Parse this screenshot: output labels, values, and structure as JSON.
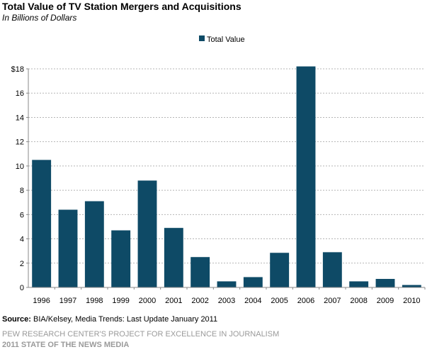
{
  "header": {
    "title": "Total Value of TV Station Mergers and Acquisitions",
    "subtitle": "In Billions of Dollars"
  },
  "chart_data": {
    "type": "bar",
    "title": "Total Value of TV Station Mergers and Acquisitions",
    "subtitle": "In Billions of Dollars",
    "categories": [
      "1996",
      "1997",
      "1998",
      "1999",
      "2000",
      "2001",
      "2002",
      "2003",
      "2004",
      "2005",
      "2006",
      "2007",
      "2008",
      "2009",
      "2010"
    ],
    "series": [
      {
        "name": "Total Value",
        "color": "#0e4a66",
        "values": [
          10.5,
          6.4,
          7.1,
          4.7,
          8.8,
          4.9,
          2.5,
          0.5,
          0.85,
          2.85,
          18.2,
          2.9,
          0.5,
          0.7,
          0.2
        ]
      }
    ],
    "y_ticks": [
      "0",
      "2",
      "4",
      "6",
      "8",
      "10",
      "12",
      "14",
      "16",
      "$18"
    ],
    "ylim": [
      0,
      18
    ],
    "grid": true,
    "legend_position": "top"
  },
  "footer": {
    "source_label": "Source:",
    "source_text": " BIA/Kelsey, Media Trends: Last Update January 2011",
    "credit_line1": "PEW RESEARCH CENTER'S PROJECT FOR EXCELLENCE IN JOURNALISM",
    "credit_line2": "2011 STATE OF THE NEWS MEDIA"
  }
}
